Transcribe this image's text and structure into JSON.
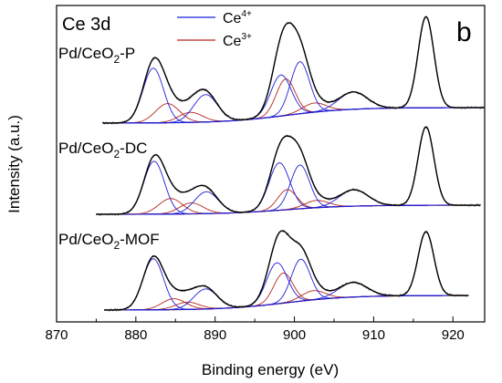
{
  "chart_data": {
    "type": "line",
    "panel_label": "b",
    "title": "Ce 3d",
    "xlabel": "Binding energy (eV)",
    "ylabel": "Intensity (a.u.)",
    "xlim": [
      870,
      924
    ],
    "x_ticks": [
      "870",
      "880",
      "890",
      "900",
      "910",
      "920"
    ],
    "y_ticks_shown": false,
    "legend": {
      "placement": "top-center",
      "entries": [
        {
          "name": "Ce",
          "sup": "4+",
          "color": "#1f1fd6"
        },
        {
          "name": "Ce",
          "sup": "3+",
          "color": "#b5261e"
        }
      ]
    },
    "colors": {
      "ce4": "#1f1fd6",
      "ce3": "#b5261e",
      "envelope": "#000000",
      "raw": "#777777",
      "background_pd_p": "#1f1fd6",
      "background_other": "#8b1a1a"
    },
    "series": [
      {
        "sample": "Pd/CeO",
        "sub": "2",
        "suffix": "-P",
        "x_range": [
          875.8,
          924
        ],
        "offset": 2.05,
        "bg_start": 0.0,
        "bg_end": 0.17,
        "ce4_peaks": [
          [
            882.2,
            0.6,
            1.3
          ],
          [
            888.8,
            0.3,
            1.5
          ],
          [
            898.3,
            0.45,
            1.3
          ],
          [
            900.7,
            0.57,
            1.2
          ],
          [
            907.4,
            0.19,
            1.8
          ],
          [
            916.6,
            1.0,
            1.0
          ]
        ],
        "ce3_peaks": [
          [
            884.0,
            0.21,
            1.5
          ],
          [
            886.9,
            0.11,
            1.5
          ],
          [
            898.9,
            0.4,
            1.2
          ],
          [
            902.5,
            0.1,
            1.5
          ]
        ]
      },
      {
        "sample": "Pd/CeO",
        "sub": "2",
        "suffix": "-DC",
        "x_range": [
          875.0,
          923.5
        ],
        "offset": 1.05,
        "bg_start": 0.0,
        "bg_end": 0.1,
        "ce4_peaks": [
          [
            882.3,
            0.58,
            1.3
          ],
          [
            888.9,
            0.24,
            1.5
          ],
          [
            898.1,
            0.52,
            1.3
          ],
          [
            900.7,
            0.48,
            1.2
          ],
          [
            907.5,
            0.18,
            1.8
          ],
          [
            916.6,
            0.86,
            1.0
          ]
        ],
        "ce3_peaks": [
          [
            884.4,
            0.17,
            1.5
          ],
          [
            887.0,
            0.12,
            1.5
          ],
          [
            899.1,
            0.22,
            1.2
          ],
          [
            902.8,
            0.08,
            1.5
          ]
        ]
      },
      {
        "sample": "Pd/CeO",
        "sub": "2",
        "suffix": "-MOF",
        "x_range": [
          876.0,
          922.0
        ],
        "offset": 0.0,
        "bg_start": 0.0,
        "bg_end": 0.16,
        "ce4_peaks": [
          [
            882.2,
            0.56,
            1.3
          ],
          [
            888.8,
            0.22,
            1.5
          ],
          [
            897.8,
            0.45,
            1.3
          ],
          [
            900.8,
            0.46,
            1.2
          ],
          [
            907.4,
            0.16,
            1.8
          ],
          [
            916.6,
            0.7,
            1.0
          ]
        ],
        "ce3_peaks": [
          [
            884.8,
            0.12,
            1.5
          ],
          [
            886.5,
            0.08,
            1.5
          ],
          [
            898.6,
            0.33,
            1.2
          ],
          [
            902.4,
            0.1,
            1.5
          ]
        ]
      }
    ]
  }
}
